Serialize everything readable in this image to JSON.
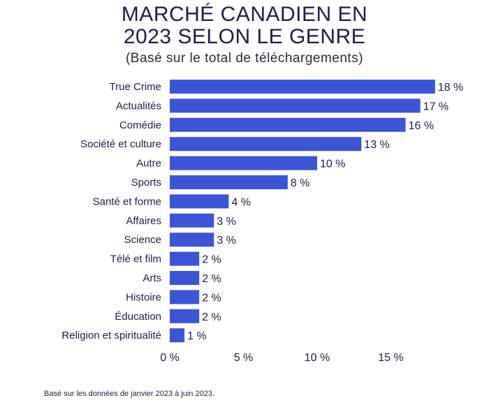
{
  "header": {
    "title_line_1": "MARCHÉ CANADIEN EN",
    "title_line_2": "2023 SELON LE GENRE",
    "subtitle": "(Basé sur le total de téléchargements)"
  },
  "footnote": "Basé sur les données de janvier 2023 à juin 2023.",
  "colors": {
    "bar": "#3b55d4",
    "text": "#1f1c4a",
    "title": "#1f1c4a"
  },
  "chart_data": {
    "type": "bar",
    "orientation": "horizontal",
    "title": "MARCHÉ CANADIEN EN 2023 SELON LE GENRE",
    "subtitle": "(Basé sur le total de téléchargements)",
    "categories": [
      "True Crime",
      "Actualités",
      "Comédie",
      "Société et culture",
      "Autre",
      "Sports",
      "Santé et forme",
      "Affaires",
      "Science",
      "Télé et film",
      "Arts",
      "Histoire",
      "Éducation",
      "Religion et spiritualité"
    ],
    "values": [
      18,
      17,
      16,
      13,
      10,
      8,
      4,
      3,
      3,
      2,
      2,
      2,
      2,
      1
    ],
    "value_labels": [
      "18 %",
      "17 %",
      "16 %",
      "13 %",
      "10 %",
      "8 %",
      "4 %",
      "3 %",
      "3 %",
      "2 %",
      "2 %",
      "2 %",
      "2 %",
      "1 %"
    ],
    "x_ticks": [
      0,
      5,
      10,
      15
    ],
    "x_tick_labels": [
      "0 %",
      "5 %",
      "10 %",
      "15 %"
    ],
    "xlim": [
      0,
      18
    ],
    "grid": false,
    "legend": "none"
  }
}
